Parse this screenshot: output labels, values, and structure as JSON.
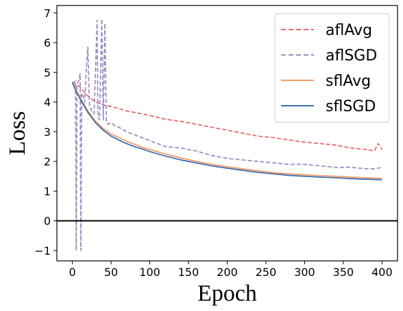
{
  "chart_data": {
    "type": "line",
    "title": "",
    "xlabel": "Epoch",
    "ylabel": "Loss",
    "xlim": [
      -20,
      420
    ],
    "ylim": [
      -1.35,
      7.25
    ],
    "xticks": [
      0,
      50,
      100,
      150,
      200,
      250,
      300,
      350,
      400
    ],
    "yticks": [
      -1,
      0,
      1,
      2,
      3,
      4,
      5,
      6,
      7
    ],
    "xtick_labels": [
      "0",
      "50",
      "100",
      "150",
      "200",
      "250",
      "300",
      "350",
      "400"
    ],
    "ytick_labels": [
      "−1",
      "0",
      "1",
      "2",
      "3",
      "4",
      "5",
      "6",
      "7"
    ],
    "grid": false,
    "legend_position": "top-right",
    "hline": {
      "y": 0,
      "color": "#000000"
    },
    "series": [
      {
        "name": "aflAvg",
        "color": "#e8696e",
        "dash": "dashed",
        "x": [
          0,
          5,
          10,
          15,
          20,
          25,
          30,
          40,
          50,
          60,
          70,
          80,
          90,
          100,
          120,
          140,
          160,
          180,
          200,
          220,
          240,
          260,
          280,
          300,
          320,
          340,
          360,
          380,
          390,
          395,
          400
        ],
        "y": [
          4.65,
          4.6,
          4.5,
          4.35,
          4.2,
          4.1,
          4.0,
          3.9,
          3.85,
          3.78,
          3.7,
          3.65,
          3.6,
          3.55,
          3.42,
          3.35,
          3.25,
          3.15,
          3.05,
          2.95,
          2.85,
          2.8,
          2.72,
          2.65,
          2.6,
          2.55,
          2.45,
          2.4,
          2.35,
          2.6,
          2.4
        ]
      },
      {
        "name": "aflSGD",
        "color": "#9a8fc4",
        "dash": "dashed",
        "x": [
          0,
          4,
          5,
          6,
          8,
          10,
          11,
          12,
          14,
          16,
          18,
          20,
          22,
          25,
          28,
          32,
          33,
          35,
          38,
          40,
          42,
          44,
          46,
          50,
          55,
          60,
          70,
          80,
          90,
          100,
          120,
          140,
          160,
          180,
          200,
          220,
          240,
          260,
          280,
          300,
          320,
          340,
          360,
          380,
          390,
          400
        ],
        "y": [
          4.65,
          4.7,
          -1.0,
          4.6,
          4.7,
          4.95,
          -1.0,
          4.3,
          4.2,
          4.0,
          5.1,
          5.85,
          3.9,
          3.7,
          3.6,
          6.75,
          3.5,
          3.4,
          6.8,
          3.4,
          6.65,
          3.3,
          3.25,
          3.3,
          3.2,
          3.15,
          3.0,
          2.9,
          2.8,
          2.7,
          2.5,
          2.45,
          2.35,
          2.2,
          2.1,
          2.05,
          2.0,
          1.95,
          1.9,
          1.9,
          1.85,
          1.8,
          1.8,
          1.75,
          1.75,
          1.8
        ]
      },
      {
        "name": "sflAvg",
        "color": "#f59a64",
        "dash": "solid",
        "x": [
          0,
          5,
          10,
          20,
          30,
          40,
          50,
          60,
          70,
          80,
          90,
          100,
          120,
          140,
          160,
          180,
          200,
          220,
          240,
          260,
          280,
          300,
          320,
          340,
          360,
          380,
          400
        ],
        "y": [
          4.65,
          4.4,
          4.15,
          3.7,
          3.35,
          3.1,
          2.92,
          2.8,
          2.68,
          2.58,
          2.48,
          2.4,
          2.25,
          2.12,
          2.0,
          1.9,
          1.82,
          1.75,
          1.68,
          1.62,
          1.58,
          1.55,
          1.52,
          1.5,
          1.47,
          1.45,
          1.43
        ]
      },
      {
        "name": "sflSGD",
        "color": "#3b6db3",
        "dash": "solid",
        "x": [
          0,
          5,
          10,
          20,
          30,
          40,
          50,
          60,
          70,
          80,
          90,
          100,
          120,
          140,
          160,
          180,
          200,
          220,
          240,
          260,
          280,
          300,
          320,
          340,
          360,
          380,
          400
        ],
        "y": [
          4.65,
          4.35,
          4.1,
          3.65,
          3.3,
          3.05,
          2.85,
          2.72,
          2.6,
          2.5,
          2.42,
          2.33,
          2.18,
          2.05,
          1.95,
          1.85,
          1.77,
          1.7,
          1.63,
          1.58,
          1.53,
          1.5,
          1.47,
          1.45,
          1.42,
          1.4,
          1.38
        ]
      }
    ]
  }
}
